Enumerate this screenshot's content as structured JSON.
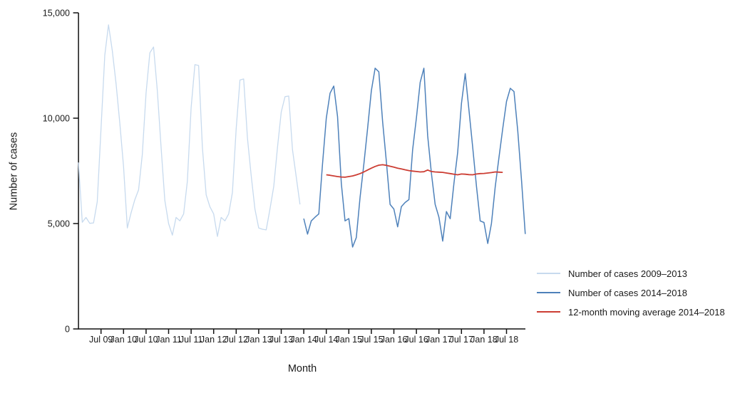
{
  "chart_data": {
    "type": "line",
    "title": "",
    "xlabel": "Month",
    "ylabel": "Number of cases",
    "ylim": [
      0,
      15000
    ],
    "grid": false,
    "legend_position": "right",
    "yticks": [
      {
        "value": 0,
        "label": "0"
      },
      {
        "value": 5000,
        "label": "5,000"
      },
      {
        "value": 10000,
        "label": "10,000"
      },
      {
        "value": 15000,
        "label": "15,000"
      }
    ],
    "x_ticks": [
      {
        "label": "Jul 09",
        "month_index": 6
      },
      {
        "label": "Jan 10",
        "month_index": 12
      },
      {
        "label": "Jul 10",
        "month_index": 18
      },
      {
        "label": "Jan 11",
        "month_index": 24
      },
      {
        "label": "Jul 11",
        "month_index": 30
      },
      {
        "label": "Jan 12",
        "month_index": 36
      },
      {
        "label": "Jul 12",
        "month_index": 42
      },
      {
        "label": "Jan 13",
        "month_index": 48
      },
      {
        "label": "Jul 13",
        "month_index": 54
      },
      {
        "label": "Jan 14",
        "month_index": 60
      },
      {
        "label": "Jul 14",
        "month_index": 66
      },
      {
        "label": "Jan 15",
        "month_index": 72
      },
      {
        "label": "Jul 15",
        "month_index": 78
      },
      {
        "label": "Jan 16",
        "month_index": 84
      },
      {
        "label": "Jul 16",
        "month_index": 90
      },
      {
        "label": "Jan 17",
        "month_index": 96
      },
      {
        "label": "Jul 17",
        "month_index": 102
      },
      {
        "label": "Jan 18",
        "month_index": 108
      },
      {
        "label": "Jul 18",
        "month_index": 114
      }
    ],
    "series": [
      {
        "name": "Number of cases 2009–2013",
        "color": "#c7daee",
        "line_width": 1.3,
        "start_month_index": 0,
        "start_label": "Jan 2009",
        "values": [
          7900,
          5060,
          5290,
          5010,
          5030,
          6030,
          9500,
          12990,
          14430,
          13210,
          11640,
          9790,
          7710,
          4790,
          5500,
          6130,
          6600,
          8270,
          11200,
          13100,
          13380,
          11300,
          8600,
          6100,
          5000,
          4450,
          5290,
          5130,
          5460,
          7000,
          10500,
          12540,
          12500,
          8610,
          6360,
          5800,
          5460,
          4390,
          5290,
          5130,
          5460,
          6470,
          9500,
          11810,
          11860,
          9060,
          7260,
          5690,
          4790,
          4730,
          4700,
          5690,
          6760,
          8600,
          10290,
          11020,
          11050,
          8500,
          7200,
          5910
        ]
      },
      {
        "name": "Number of cases 2014–2018",
        "color": "#4e81ba",
        "line_width": 1.5,
        "start_month_index": 60,
        "start_label": "Jan 2014",
        "values": [
          5235,
          4500,
          5125,
          5300,
          5460,
          7820,
          10000,
          11190,
          11525,
          10070,
          6900,
          5125,
          5235,
          3885,
          4335,
          6245,
          7820,
          9500,
          11300,
          12370,
          12200,
          9840,
          7930,
          5910,
          5690,
          4845,
          5800,
          6000,
          6135,
          8495,
          10010,
          11700,
          12370,
          9170,
          7370,
          5910,
          5300,
          4170,
          5570,
          5230,
          6920,
          8380,
          10700,
          12115,
          10395,
          8610,
          6755,
          5125,
          5050,
          4055,
          5010,
          6755,
          8155,
          9505,
          10795,
          11420,
          11265,
          9390,
          7035,
          4505
        ]
      },
      {
        "name": "12-month moving average 2014–2018",
        "color": "#cc3d33",
        "line_width": 1.8,
        "start_month_index": 66,
        "start_label": "Jul 2014",
        "values": [
          7315,
          7290,
          7260,
          7230,
          7210,
          7200,
          7230,
          7260,
          7310,
          7370,
          7450,
          7540,
          7630,
          7710,
          7770,
          7790,
          7765,
          7720,
          7675,
          7630,
          7595,
          7550,
          7515,
          7490,
          7470,
          7450,
          7460,
          7540,
          7470,
          7450,
          7440,
          7430,
          7400,
          7370,
          7340,
          7315,
          7350,
          7340,
          7320,
          7315,
          7350,
          7370,
          7380,
          7400,
          7420,
          7450,
          7440,
          7430
        ]
      }
    ]
  }
}
